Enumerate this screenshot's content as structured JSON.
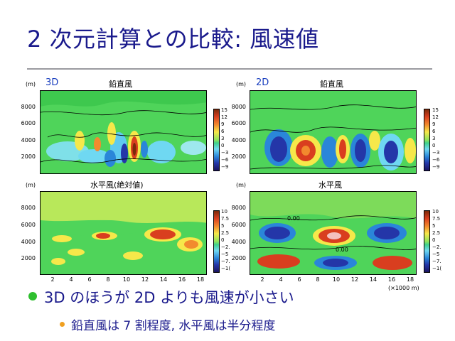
{
  "title": "2 次元計算との比較: 風速値",
  "unit_label": "(m)",
  "x_unit_label": "(×1000 m)",
  "panels": {
    "top_left": {
      "tag": "3D",
      "title": "鉛直風"
    },
    "top_right": {
      "tag": "2D",
      "title": "鉛直風"
    },
    "bottom_left": {
      "title": "水平風(絶対値)"
    },
    "bottom_right": {
      "title": "水平風"
    }
  },
  "y_ticks": [
    "8000",
    "6000",
    "4000",
    "2000"
  ],
  "x_ticks": [
    "2",
    "4",
    "6",
    "8",
    "10",
    "12",
    "14",
    "16",
    "18"
  ],
  "colorbar_vertical": [
    "15",
    "12",
    "9",
    "6",
    "3",
    "0",
    "−3",
    "−6",
    "−9"
  ],
  "colorbar_horizontal": [
    "10",
    "7.5",
    "5",
    "2.5",
    "0",
    "−2.",
    "−5",
    "−7.",
    "−1("
  ],
  "contour_label": "0.00",
  "bullets": {
    "main": "3D のほうが 2D よりも風速が小さい",
    "sub": "鉛直風は 7 割程度, 水平風は半分程度"
  },
  "colors": {
    "title": "#1a1a8c",
    "bullet_main": "#2fbf2f",
    "bullet_sub": "#f0a020",
    "tag": "#1a3fbf"
  }
}
